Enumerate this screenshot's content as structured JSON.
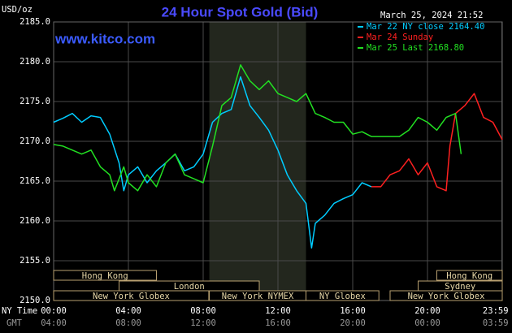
{
  "chart_data": {
    "type": "line",
    "title": "24 Hour Spot Gold (Bid)",
    "timestamp": "March 25, 2024 21:52",
    "source": "www.kitco.com",
    "ylabel": "USD/oz",
    "xlabel": "NY Time",
    "x2label": "GMT",
    "legend": "top-right",
    "grid": true,
    "xlim": [
      0,
      24
    ],
    "ylim": [
      2150,
      2185
    ],
    "yticks": [
      {
        "value": 2150,
        "label": "2150.0"
      },
      {
        "value": 2155,
        "label": "2155.0"
      },
      {
        "value": 2160,
        "label": "2160.0"
      },
      {
        "value": 2165,
        "label": "2165.0"
      },
      {
        "value": 2170,
        "label": "2170.0"
      },
      {
        "value": 2175,
        "label": "2175.0"
      },
      {
        "value": 2180,
        "label": "2180.0"
      },
      {
        "value": 2185,
        "label": "2185.0"
      }
    ],
    "xticks": [
      {
        "value": 0,
        "label": "00:00"
      },
      {
        "value": 4,
        "label": "04:00"
      },
      {
        "value": 8,
        "label": "08:00"
      },
      {
        "value": 12,
        "label": "12:00"
      },
      {
        "value": 16,
        "label": "16:00"
      },
      {
        "value": 20,
        "label": "20:00"
      },
      {
        "value": 23.98,
        "label": "23:59"
      }
    ],
    "x2ticks": [
      {
        "value": 0,
        "label": "04:00"
      },
      {
        "value": 4,
        "label": "08:00"
      },
      {
        "value": 8,
        "label": "12:00"
      },
      {
        "value": 12,
        "label": "16:00"
      },
      {
        "value": 16,
        "label": "20:00"
      },
      {
        "value": 20,
        "label": "00:00"
      },
      {
        "value": 23.98,
        "label": "03:59"
      }
    ],
    "shade": [
      8.33,
      13.5
    ],
    "sessions": [
      {
        "label": "Hong Kong",
        "row": 0,
        "start": 0,
        "end": 5.5
      },
      {
        "label": "Hong Kong",
        "row": 0,
        "start": 20.5,
        "end": 24
      },
      {
        "label": "London",
        "row": 1,
        "start": 3.5,
        "end": 11
      },
      {
        "label": "Sydney",
        "row": 1,
        "start": 19.5,
        "end": 24
      },
      {
        "label": "New York Globex",
        "row": 2,
        "start": 0,
        "end": 8.3
      },
      {
        "label": "New York NYMEX",
        "row": 2,
        "start": 8.33,
        "end": 13.5
      },
      {
        "label": "NY Globex",
        "row": 2,
        "start": 13.5,
        "end": 17.4
      },
      {
        "label": "New York Globex",
        "row": 2,
        "start": 18,
        "end": 24
      }
    ],
    "series": [
      {
        "name": "Mar 22 NY close 2164.40",
        "color": "#00ccff",
        "x": [
          0,
          0.5,
          1,
          1.5,
          2,
          2.5,
          3,
          3.5,
          3.75,
          4,
          4.5,
          5,
          5.5,
          6,
          6.5,
          7,
          7.5,
          8,
          8.5,
          9,
          9.5,
          10,
          10.5,
          11,
          11.5,
          12,
          12.5,
          13,
          13.5,
          13.8,
          14,
          14.5,
          15,
          15.5,
          16,
          16.5,
          17
        ],
        "values": [
          2172.4,
          2172.9,
          2173.5,
          2172.4,
          2173.2,
          2173.0,
          2170.9,
          2167.3,
          2163.8,
          2165.8,
          2166.8,
          2164.8,
          2166.3,
          2167.3,
          2168.4,
          2166.3,
          2166.8,
          2168.4,
          2172.4,
          2173.5,
          2174.0,
          2178.1,
          2174.5,
          2173.0,
          2171.4,
          2168.9,
          2165.8,
          2163.8,
          2162.2,
          2156.6,
          2159.7,
          2160.7,
          2162.2,
          2162.8,
          2163.3,
          2164.8,
          2164.3
        ]
      },
      {
        "name": "Mar 24 Sunday",
        "color": "#ff2020",
        "x": [
          17,
          17.5,
          18,
          18.5,
          19,
          19.5,
          20,
          20.5,
          21,
          21.2,
          21.5,
          22,
          22.5,
          23,
          23.5,
          24
        ],
        "values": [
          2164.3,
          2164.3,
          2165.8,
          2166.3,
          2167.8,
          2165.8,
          2167.3,
          2164.3,
          2163.8,
          2169.4,
          2173.5,
          2174.5,
          2176.0,
          2173.0,
          2172.4,
          2170.2
        ]
      },
      {
        "name": "Mar 25 Last 2168.80",
        "color": "#22e022",
        "x": [
          0,
          0.5,
          1,
          1.5,
          2,
          2.5,
          3,
          3.25,
          3.75,
          4,
          4.5,
          5,
          5.5,
          6,
          6.5,
          7,
          7.5,
          8,
          8.5,
          9,
          9.5,
          10,
          10.5,
          11,
          11.5,
          12,
          12.5,
          13,
          13.5,
          14,
          14.5,
          15,
          15.5,
          16,
          16.5,
          17,
          17.5,
          18,
          18.5,
          19,
          19.5,
          20,
          20.5,
          21,
          21.5,
          21.8
        ],
        "values": [
          2169.6,
          2169.4,
          2168.9,
          2168.4,
          2168.9,
          2166.8,
          2165.8,
          2163.8,
          2166.8,
          2164.8,
          2163.8,
          2165.8,
          2164.3,
          2167.3,
          2168.4,
          2165.8,
          2165.3,
          2164.8,
          2169.4,
          2174.5,
          2175.5,
          2179.6,
          2177.6,
          2176.5,
          2177.6,
          2176.0,
          2175.5,
          2175.0,
          2176.0,
          2173.5,
          2173.0,
          2172.4,
          2172.4,
          2170.9,
          2171.2,
          2170.6,
          2170.6,
          2170.6,
          2170.6,
          2171.4,
          2173.0,
          2172.4,
          2171.4,
          2173.0,
          2173.5,
          2168.4
        ]
      }
    ]
  }
}
